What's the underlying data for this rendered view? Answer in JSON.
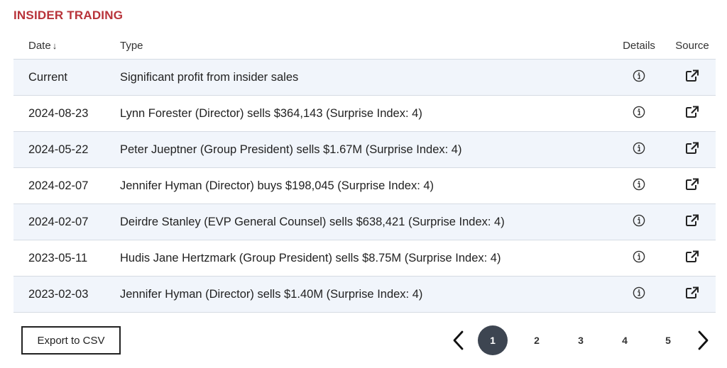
{
  "section": {
    "title": "INSIDER TRADING"
  },
  "table": {
    "headers": {
      "date": "Date",
      "sort_arrow": "↓",
      "type": "Type",
      "details": "Details",
      "source": "Source"
    },
    "rows": [
      {
        "date": "Current",
        "type": "Significant profit from insider sales"
      },
      {
        "date": "2024-08-23",
        "type": "Lynn Forester (Director) sells $364,143 (Surprise Index: 4)"
      },
      {
        "date": "2024-05-22",
        "type": "Peter Jueptner (Group President) sells $1.67M (Surprise Index: 4)"
      },
      {
        "date": "2024-02-07",
        "type": "Jennifer Hyman (Director) buys $198,045 (Surprise Index: 4)"
      },
      {
        "date": "2024-02-07",
        "type": "Deirdre Stanley (EVP General Counsel) sells $638,421 (Surprise Index: 4)"
      },
      {
        "date": "2023-05-11",
        "type": "Hudis Jane Hertzmark (Group President) sells $8.75M (Surprise Index: 4)"
      },
      {
        "date": "2023-02-03",
        "type": "Jennifer Hyman (Director) sells $1.40M (Surprise Index: 4)"
      }
    ],
    "details_icon": "info-circle-icon",
    "source_icon": "external-link-icon"
  },
  "export": {
    "label": "Export to CSV"
  },
  "pagination": {
    "prev_icon": "chevron-left-icon",
    "next_icon": "chevron-right-icon",
    "pages": [
      "1",
      "2",
      "3",
      "4",
      "5"
    ],
    "current": "1"
  },
  "colors": {
    "title": "#b8333a",
    "row_alt": "#f1f5fb",
    "active_page": "#3d4551"
  }
}
